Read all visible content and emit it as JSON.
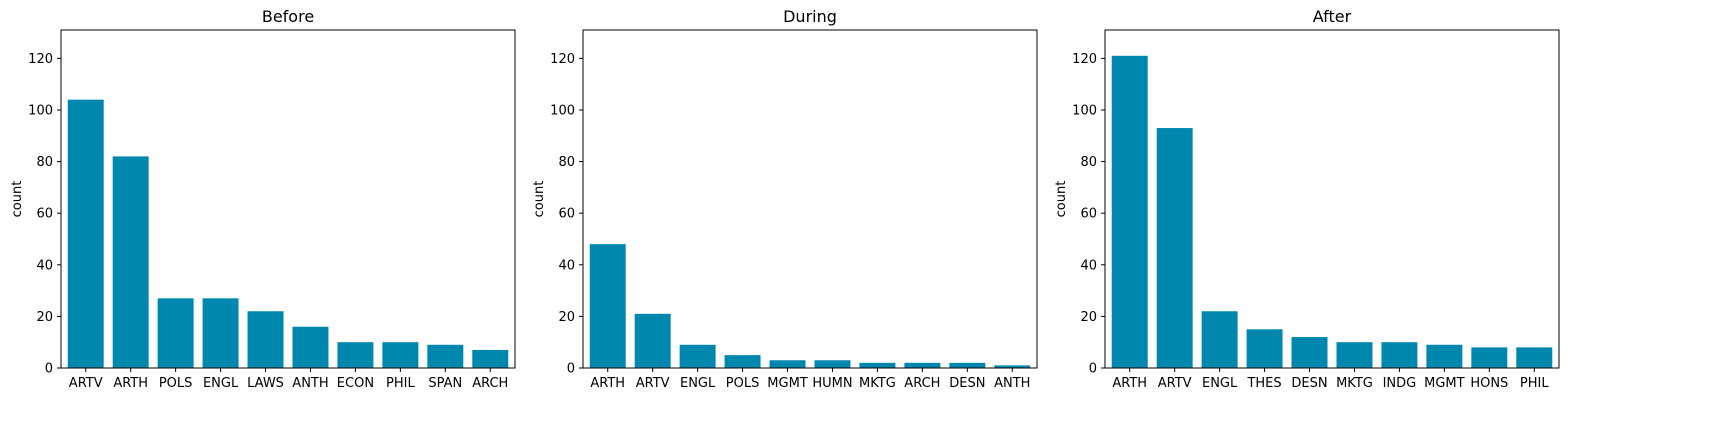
{
  "figure": {
    "background": "#ffffff",
    "bar_color": "#0087ad"
  },
  "chart_data": [
    {
      "type": "bar",
      "title": "Before",
      "xlabel": "",
      "ylabel": "count",
      "ylim": [
        0,
        131
      ],
      "yticks": [
        0,
        20,
        40,
        60,
        80,
        100,
        120
      ],
      "categories": [
        "ARTV",
        "ARTH",
        "POLS",
        "ENGL",
        "LAWS",
        "ANTH",
        "ECON",
        "PHIL",
        "SPAN",
        "ARCH"
      ],
      "values": [
        104,
        82,
        27,
        27,
        22,
        16,
        10,
        10,
        9,
        7
      ],
      "grid": false
    },
    {
      "type": "bar",
      "title": "During",
      "xlabel": "",
      "ylabel": "count",
      "ylim": [
        0,
        131
      ],
      "yticks": [
        0,
        20,
        40,
        60,
        80,
        100,
        120
      ],
      "categories": [
        "ARTH",
        "ARTV",
        "ENGL",
        "POLS",
        "MGMT",
        "HUMN",
        "MKTG",
        "ARCH",
        "DESN",
        "ANTH"
      ],
      "values": [
        48,
        21,
        9,
        5,
        3,
        3,
        2,
        2,
        2,
        1
      ],
      "grid": false
    },
    {
      "type": "bar",
      "title": "After",
      "xlabel": "",
      "ylabel": "count",
      "ylim": [
        0,
        131
      ],
      "yticks": [
        0,
        20,
        40,
        60,
        80,
        100,
        120
      ],
      "categories": [
        "ARTH",
        "ARTV",
        "ENGL",
        "THES",
        "DESN",
        "MKTG",
        "INDG",
        "MGMT",
        "HONS",
        "PHIL"
      ],
      "values": [
        121,
        93,
        22,
        15,
        12,
        10,
        10,
        9,
        8,
        8
      ],
      "grid": false
    }
  ]
}
